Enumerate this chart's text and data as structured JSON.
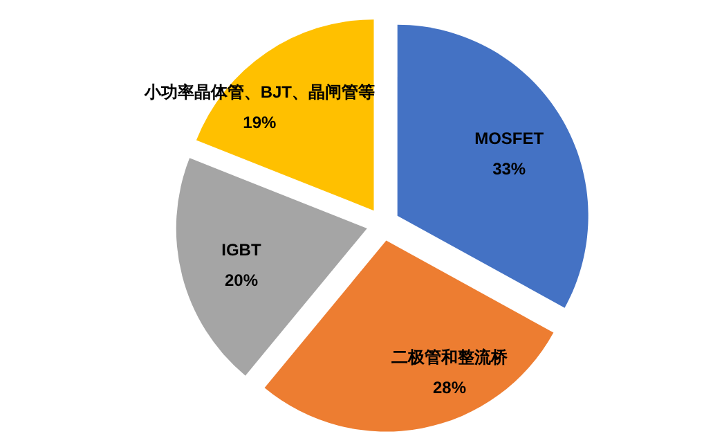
{
  "chart_data": {
    "type": "pie",
    "categories": [
      "MOSFET",
      "二极管和整流桥",
      "IGBT",
      "小功率晶体管、BJT、晶闸管等"
    ],
    "values": [
      33,
      28,
      20,
      19
    ],
    "colors": [
      "#4472c4",
      "#ed7d31",
      "#a5a5a5",
      "#ffc000"
    ],
    "value_labels": [
      "33%",
      "28%",
      "20%",
      "19%"
    ]
  }
}
